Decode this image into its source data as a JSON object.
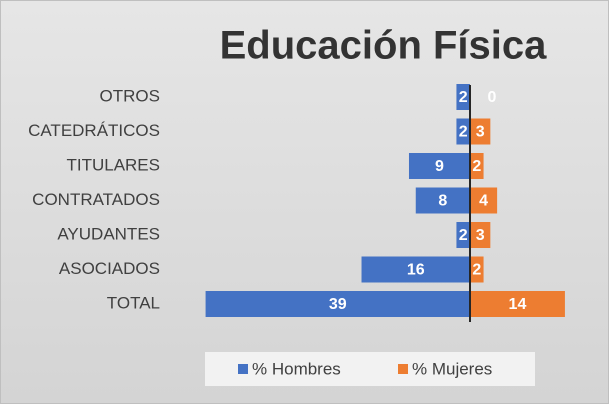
{
  "chart_data": {
    "type": "butterfly_bar",
    "title": "Educación Física",
    "categories": [
      "OTROS",
      "CATEDRÁTICOS",
      "TITULARES",
      "CONTRATADOS",
      "AYUDANTES",
      "ASOCIADOS",
      "TOTAL"
    ],
    "series": [
      {
        "name": "% Hombres",
        "color": "#4472c4",
        "values": [
          2,
          2,
          9,
          8,
          2,
          16,
          39
        ]
      },
      {
        "name": "% Mujeres",
        "color": "#ed7d31",
        "values": [
          0,
          3,
          2,
          4,
          3,
          2,
          14
        ]
      }
    ],
    "legend": "bottom"
  }
}
